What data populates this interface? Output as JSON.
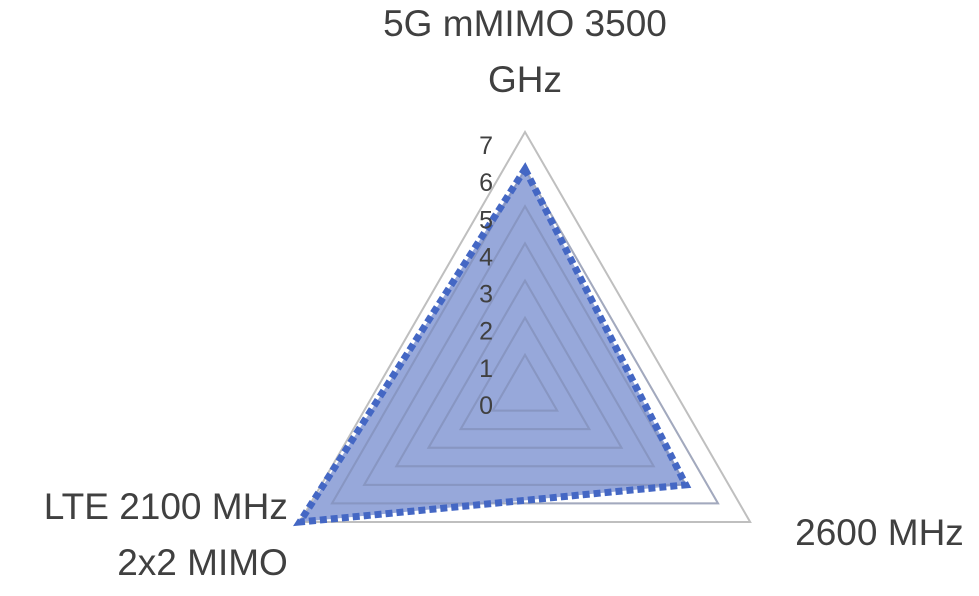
{
  "chart_data": {
    "type": "radar",
    "categories": [
      "5G mMIMO 3500 GHz",
      "2600 MHz",
      "LTE 2100 MHz 2x2 MIMO"
    ],
    "category_lines": [
      [
        "5G mMIMO 3500",
        "GHz"
      ],
      [
        "2600 MHz"
      ],
      [
        "LTE 2100 MHz",
        "2x2 MIMO"
      ]
    ],
    "series": [
      {
        "values": [
          6,
          5,
          7
        ]
      }
    ],
    "r_range": [
      0,
      7
    ],
    "ticks": [
      "0",
      "1",
      "2",
      "3",
      "4",
      "5",
      "6",
      "7"
    ],
    "grid": true,
    "legend": "none",
    "colors": {
      "fill": "#6f86cc",
      "outline": "#4467c4",
      "grid": "#bfbfbf",
      "inner_grid": "#8a97bd",
      "text": "#404040"
    }
  }
}
